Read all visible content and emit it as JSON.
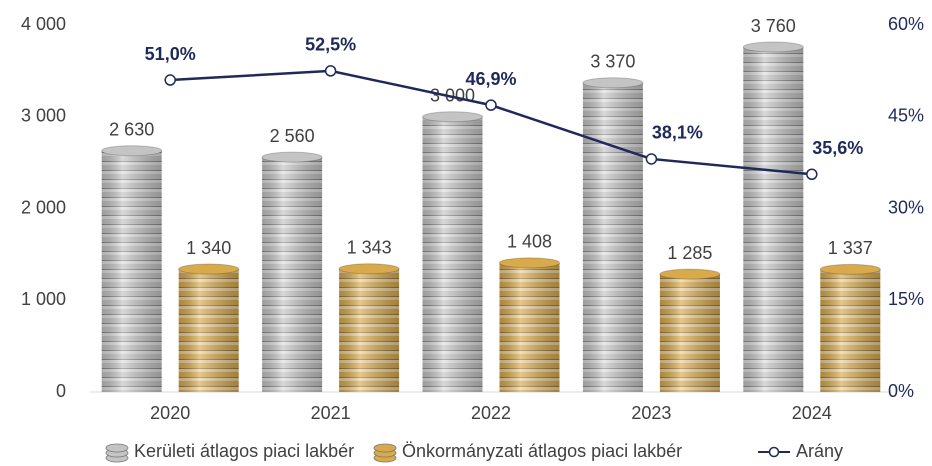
{
  "chart_data": {
    "type": "bar",
    "categories": [
      "2020",
      "2021",
      "2022",
      "2023",
      "2024"
    ],
    "series": [
      {
        "name": "Kerületi átlagos piaci lakbér",
        "color": "#c4c4c4",
        "values": [
          2630,
          2560,
          3000,
          3370,
          3760
        ],
        "value_labels": [
          "2 630",
          "2 560",
          "3 000",
          "3 370",
          "3 760"
        ]
      },
      {
        "name": "Önkormányzati átlagos piaci lakbér",
        "color": "#d8aa4c",
        "values": [
          1340,
          1343,
          1408,
          1285,
          1337
        ],
        "value_labels": [
          "1 340",
          "1 343",
          "1 408",
          "1 285",
          "1 337"
        ]
      },
      {
        "name": "Arány",
        "type": "line",
        "axis": "y2",
        "color": "#1f2a5a",
        "values": [
          51.0,
          52.5,
          46.9,
          38.1,
          35.6
        ],
        "value_labels": [
          "51,0%",
          "52,5%",
          "46,9%",
          "38,1%",
          "35,6%"
        ]
      }
    ],
    "ylim": [
      0,
      4000
    ],
    "yticks": [
      0,
      {
        "value": 1000,
        "label": "1 000"
      },
      {
        "value": 2000,
        "label": "2 000"
      },
      {
        "value": 3000,
        "label": "3 000"
      },
      {
        "value": 4000,
        "label": "4 000"
      }
    ],
    "y2lim": [
      0,
      60
    ],
    "y2ticks": [
      {
        "value": 0,
        "label": "0%"
      },
      {
        "value": 15,
        "label": "15%"
      },
      {
        "value": 30,
        "label": "30%"
      },
      {
        "value": 45,
        "label": "45%"
      },
      {
        "value": 60,
        "label": "60%"
      }
    ],
    "grid": false
  }
}
